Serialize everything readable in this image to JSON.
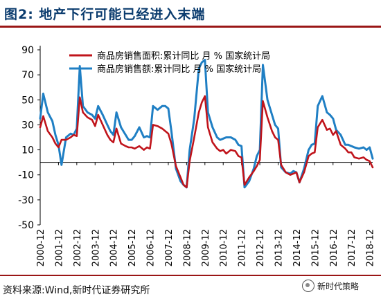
{
  "title": "图2:  地产下行可能已经进入末端",
  "source": "资料来源:Wind,新时代证券研究所",
  "watermark": "新时代策略",
  "colors": {
    "area": "#c0141b",
    "amount": "#1f7fc4",
    "title": "#0b3c6e",
    "rule": "#9a1616"
  },
  "chart_data": {
    "type": "line",
    "ylim": [
      -50,
      90
    ],
    "yticks": [
      -50,
      -30,
      -10,
      10,
      30,
      50,
      70,
      90
    ],
    "x_start": "2000-12",
    "x_end": "2019-02",
    "xticks": [
      "2000-12",
      "2001-12",
      "2002-12",
      "2003-12",
      "2004-12",
      "2005-12",
      "2006-12",
      "2007-12",
      "2008-12",
      "2009-12",
      "2010-12",
      "2011-12",
      "2012-12",
      "2013-12",
      "2014-12",
      "2015-12",
      "2016-12",
      "2017-12",
      "2018-12"
    ],
    "legend_position": "top",
    "series": [
      {
        "name": "商品房销售面积:累计同比  月  %  国家统计局",
        "color": "#c0141b",
        "points": [
          [
            "2000-12",
            28
          ],
          [
            "2001-02",
            37
          ],
          [
            "2001-05",
            25
          ],
          [
            "2001-08",
            20
          ],
          [
            "2001-10",
            15
          ],
          [
            "2001-12",
            12
          ],
          [
            "2002-02",
            18
          ],
          [
            "2002-05",
            18
          ],
          [
            "2002-08",
            20
          ],
          [
            "2002-10",
            22
          ],
          [
            "2002-12",
            21
          ],
          [
            "2003-02",
            52
          ],
          [
            "2003-04",
            40
          ],
          [
            "2003-07",
            36
          ],
          [
            "2003-10",
            34
          ],
          [
            "2003-12",
            29
          ],
          [
            "2004-02",
            38
          ],
          [
            "2004-05",
            30
          ],
          [
            "2004-08",
            22
          ],
          [
            "2004-10",
            18
          ],
          [
            "2004-12",
            16
          ],
          [
            "2005-02",
            27
          ],
          [
            "2005-05",
            15
          ],
          [
            "2005-08",
            13
          ],
          [
            "2005-10",
            12
          ],
          [
            "2005-12",
            12
          ],
          [
            "2006-02",
            11
          ],
          [
            "2006-05",
            13
          ],
          [
            "2006-08",
            10
          ],
          [
            "2006-10",
            12
          ],
          [
            "2006-12",
            11
          ],
          [
            "2007-02",
            30
          ],
          [
            "2007-05",
            29
          ],
          [
            "2007-08",
            27
          ],
          [
            "2007-10",
            25
          ],
          [
            "2007-12",
            23
          ],
          [
            "2008-02",
            15
          ],
          [
            "2008-05",
            -3
          ],
          [
            "2008-08",
            -12
          ],
          [
            "2008-10",
            -18
          ],
          [
            "2008-12",
            -20
          ],
          [
            "2009-02",
            1
          ],
          [
            "2009-05",
            20
          ],
          [
            "2009-08",
            40
          ],
          [
            "2009-10",
            48
          ],
          [
            "2009-12",
            53
          ],
          [
            "2010-02",
            28
          ],
          [
            "2010-05",
            16
          ],
          [
            "2010-08",
            11
          ],
          [
            "2010-10",
            9
          ],
          [
            "2010-12",
            10
          ],
          [
            "2011-02",
            7
          ],
          [
            "2011-05",
            10
          ],
          [
            "2011-08",
            9
          ],
          [
            "2011-10",
            5
          ],
          [
            "2011-12",
            4
          ],
          [
            "2012-02",
            -18
          ],
          [
            "2012-05",
            -12
          ],
          [
            "2012-08",
            -7
          ],
          [
            "2012-10",
            -3
          ],
          [
            "2012-12",
            2
          ],
          [
            "2013-02",
            49
          ],
          [
            "2013-05",
            36
          ],
          [
            "2013-08",
            25
          ],
          [
            "2013-10",
            20
          ],
          [
            "2013-12",
            18
          ],
          [
            "2014-02",
            -2
          ],
          [
            "2014-05",
            -8
          ],
          [
            "2014-08",
            -10
          ],
          [
            "2014-10",
            -9
          ],
          [
            "2014-12",
            -8
          ],
          [
            "2015-02",
            -16
          ],
          [
            "2015-05",
            -8
          ],
          [
            "2015-08",
            5
          ],
          [
            "2015-10",
            7
          ],
          [
            "2015-12",
            8
          ],
          [
            "2016-02",
            28
          ],
          [
            "2016-05",
            34
          ],
          [
            "2016-08",
            26
          ],
          [
            "2016-10",
            27
          ],
          [
            "2016-12",
            22
          ],
          [
            "2017-02",
            25
          ],
          [
            "2017-05",
            14
          ],
          [
            "2017-08",
            11
          ],
          [
            "2017-10",
            8
          ],
          [
            "2017-12",
            8
          ],
          [
            "2018-02",
            4
          ],
          [
            "2018-05",
            3
          ],
          [
            "2018-08",
            4
          ],
          [
            "2018-10",
            2
          ],
          [
            "2018-12",
            1
          ],
          [
            "2019-02",
            -4
          ]
        ]
      },
      {
        "name": "商品房销售额:累计同比  月  %  国家统计局",
        "color": "#1f7fc4",
        "points": [
          [
            "2000-12",
            35
          ],
          [
            "2001-02",
            55
          ],
          [
            "2001-05",
            40
          ],
          [
            "2001-08",
            33
          ],
          [
            "2001-10",
            22
          ],
          [
            "2001-12",
            14
          ],
          [
            "2002-02",
            -2
          ],
          [
            "2002-05",
            20
          ],
          [
            "2002-08",
            23
          ],
          [
            "2002-10",
            22
          ],
          [
            "2002-12",
            27
          ],
          [
            "2003-02",
            77
          ],
          [
            "2003-04",
            45
          ],
          [
            "2003-07",
            40
          ],
          [
            "2003-10",
            38
          ],
          [
            "2003-12",
            35
          ],
          [
            "2004-02",
            45
          ],
          [
            "2004-05",
            38
          ],
          [
            "2004-08",
            30
          ],
          [
            "2004-10",
            25
          ],
          [
            "2004-12",
            22
          ],
          [
            "2005-02",
            40
          ],
          [
            "2005-05",
            28
          ],
          [
            "2005-08",
            22
          ],
          [
            "2005-10",
            18
          ],
          [
            "2005-12",
            18
          ],
          [
            "2006-02",
            21
          ],
          [
            "2006-05",
            28
          ],
          [
            "2006-08",
            20
          ],
          [
            "2006-10",
            21
          ],
          [
            "2006-12",
            20
          ],
          [
            "2007-02",
            45
          ],
          [
            "2007-05",
            42
          ],
          [
            "2007-08",
            45
          ],
          [
            "2007-10",
            45
          ],
          [
            "2007-12",
            43
          ],
          [
            "2008-02",
            25
          ],
          [
            "2008-05",
            -5
          ],
          [
            "2008-08",
            -15
          ],
          [
            "2008-10",
            -18
          ],
          [
            "2008-12",
            -20
          ],
          [
            "2009-02",
            10
          ],
          [
            "2009-05",
            35
          ],
          [
            "2009-08",
            75
          ],
          [
            "2009-10",
            80
          ],
          [
            "2009-12",
            82
          ],
          [
            "2010-02",
            40
          ],
          [
            "2010-05",
            28
          ],
          [
            "2010-08",
            20
          ],
          [
            "2010-10",
            18
          ],
          [
            "2010-12",
            19
          ],
          [
            "2011-02",
            20
          ],
          [
            "2011-05",
            20
          ],
          [
            "2011-08",
            18
          ],
          [
            "2011-10",
            14
          ],
          [
            "2011-12",
            13
          ],
          [
            "2012-02",
            -20
          ],
          [
            "2012-05",
            -15
          ],
          [
            "2012-08",
            -5
          ],
          [
            "2012-10",
            5
          ],
          [
            "2012-12",
            10
          ],
          [
            "2013-02",
            78
          ],
          [
            "2013-05",
            50
          ],
          [
            "2013-08",
            38
          ],
          [
            "2013-10",
            30
          ],
          [
            "2013-12",
            27
          ],
          [
            "2014-02",
            -4
          ],
          [
            "2014-05",
            -8
          ],
          [
            "2014-08",
            -9
          ],
          [
            "2014-10",
            -7
          ],
          [
            "2014-12",
            -8
          ],
          [
            "2015-02",
            -16
          ],
          [
            "2015-05",
            -5
          ],
          [
            "2015-08",
            10
          ],
          [
            "2015-10",
            14
          ],
          [
            "2015-12",
            15
          ],
          [
            "2016-02",
            45
          ],
          [
            "2016-05",
            53
          ],
          [
            "2016-08",
            40
          ],
          [
            "2016-10",
            38
          ],
          [
            "2016-12",
            35
          ],
          [
            "2017-02",
            26
          ],
          [
            "2017-05",
            22
          ],
          [
            "2017-08",
            14
          ],
          [
            "2017-10",
            14
          ],
          [
            "2017-12",
            13
          ],
          [
            "2018-02",
            12
          ],
          [
            "2018-05",
            11
          ],
          [
            "2018-08",
            12
          ],
          [
            "2018-10",
            10
          ],
          [
            "2018-12",
            12
          ],
          [
            "2019-02",
            3
          ]
        ]
      }
    ]
  }
}
